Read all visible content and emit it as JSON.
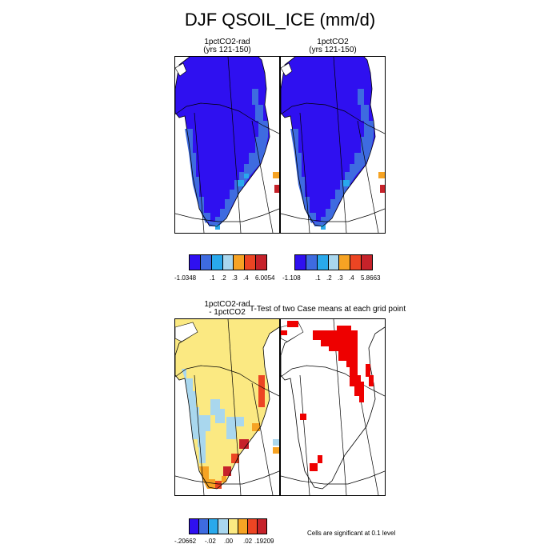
{
  "title": "DJF QSOIL_ICE (mm/d)",
  "panels": {
    "p1": {
      "title_line1": "1pctCO2-rad",
      "title_line2": "(yrs 121-150)"
    },
    "p2": {
      "title_line1": "1pctCO2",
      "title_line2": "(yrs 121-150)"
    },
    "p3": {
      "title_line1": "1pctCO2-rad",
      "title_line2": "- 1pctCO2"
    },
    "p4": {
      "title": "T-Test of two Case means at each grid point"
    }
  },
  "legend1": {
    "labels": [
      "-1.0348",
      ".1",
      ".2",
      ".3",
      ".4",
      "6.0054"
    ]
  },
  "legend2": {
    "labels": [
      "-1.108",
      ".1",
      ".2",
      ".3",
      ".4",
      "5.8663"
    ]
  },
  "legend3": {
    "labels": [
      "-.20662",
      "-.02",
      ".00",
      ".02",
      ".19209"
    ]
  },
  "note": "Cells are significant at 0.1 level",
  "colors": {
    "deep_blue": "#2f10f0",
    "mid_blue": "#3e6be0",
    "sky_blue": "#29a9ec",
    "light_blue": "#a9d7ee",
    "yellow": "#fbe982",
    "orange": "#f6a324",
    "red_orange": "#ec4523",
    "red": "#c6222a",
    "sig_red": "#ee0000"
  },
  "legend1_colors": [
    "#2f10f0",
    "#3e6be0",
    "#29a9ec",
    "#a9d7ee",
    "#f6a324",
    "#ec4523",
    "#c6222a"
  ],
  "legend2_colors": [
    "#2f10f0",
    "#3e6be0",
    "#29a9ec",
    "#a9d7ee",
    "#f6a324",
    "#ec4523",
    "#c6222a"
  ],
  "legend3_colors": [
    "#2f10f0",
    "#3e6be0",
    "#29a9ec",
    "#a9d7ee",
    "#fbe982",
    "#f6a324",
    "#ec4523",
    "#c6222a"
  ]
}
